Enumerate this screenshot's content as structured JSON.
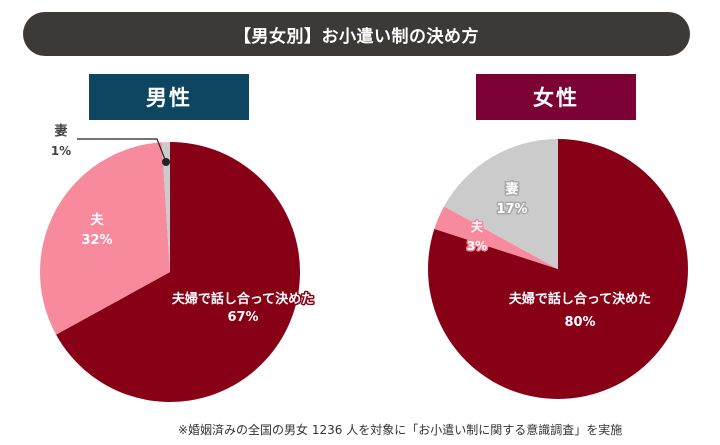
{
  "title": "【男女別】お小遣い制の決め方",
  "footnote": "※婚姻済みの全国の男女 1236 人を対象に「お小遣い制に関する意識調査」を実施",
  "colors": {
    "title_bg": "#3d3937",
    "male_label_bg": "#0e4561",
    "female_label_bg": "#7c0134",
    "couple": "#870016",
    "husband": "#f78a9c",
    "wife": "#cbcbcb"
  },
  "chart_data": [
    {
      "type": "pie",
      "title": "男性",
      "slices": [
        {
          "label": "夫婦で話し合って決めた",
          "value": 67,
          "display": "67%",
          "color_key": "couple"
        },
        {
          "label": "夫",
          "value": 32,
          "display": "32%",
          "color_key": "husband"
        },
        {
          "label": "妻",
          "value": 1,
          "display": "1%",
          "color_key": "wife"
        }
      ]
    },
    {
      "type": "pie",
      "title": "女性",
      "slices": [
        {
          "label": "夫婦で話し合って決めた",
          "value": 80,
          "display": "80%",
          "color_key": "couple"
        },
        {
          "label": "夫",
          "value": 3,
          "display": "3%",
          "color_key": "husband"
        },
        {
          "label": "妻",
          "value": 17,
          "display": "17%",
          "color_key": "wife"
        }
      ]
    }
  ]
}
